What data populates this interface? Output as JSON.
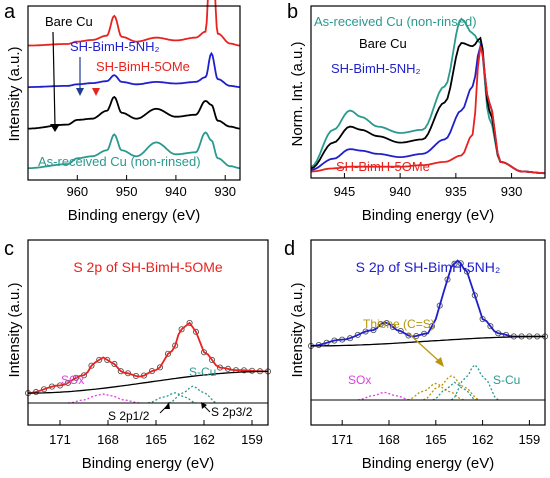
{
  "figure": {
    "panel_letters": [
      "a",
      "b",
      "c",
      "d"
    ]
  },
  "chart_data": [
    {
      "panel": "a",
      "type": "line",
      "xlabel": "Binding energy (eV)",
      "ylabel": "Intensity (a.u.)",
      "xlim": [
        970,
        927
      ],
      "xticks": [
        960,
        950,
        940,
        930
      ],
      "x_reversed": true,
      "grid": false,
      "legend": [
        {
          "label": "Bare Cu",
          "color": "#000000"
        },
        {
          "label": "SH-BimH-5NH₂",
          "color": "#1f1fcc"
        },
        {
          "label": "SH-BimH-5OMe",
          "color": "#e8231f"
        },
        {
          "label": "As-received Cu (non-rinsed)",
          "color": "#2a9a8f"
        }
      ],
      "series": [
        {
          "name": "SH-BimH-5OMe",
          "color": "#e8231f",
          "offset": 3.0,
          "x": [
            970,
            962,
            960,
            957,
            954,
            952.5,
            951,
            948,
            944,
            940,
            936,
            934,
            932.8,
            931.5,
            929,
            927
          ],
          "y": [
            0.2,
            0.24,
            0.3,
            0.34,
            0.45,
            0.95,
            0.42,
            0.3,
            0.4,
            0.33,
            0.4,
            0.55,
            3.0,
            0.5,
            0.25,
            0.2
          ]
        },
        {
          "name": "SH-BimH-5NH₂",
          "color": "#1f1fcc",
          "offset": 2.0,
          "x": [
            970,
            962,
            960,
            957,
            954,
            952.5,
            951,
            948,
            944,
            940,
            936,
            934,
            932.8,
            931.5,
            929,
            927
          ],
          "y": [
            0.15,
            0.18,
            0.22,
            0.25,
            0.3,
            0.45,
            0.28,
            0.22,
            0.28,
            0.24,
            0.28,
            0.4,
            1.0,
            0.35,
            0.18,
            0.15
          ]
        },
        {
          "name": "Bare Cu",
          "color": "#000000",
          "offset": 1.0,
          "x": [
            970,
            962,
            960,
            957,
            954,
            952.5,
            951,
            948,
            944,
            940,
            936,
            934,
            932.8,
            931.5,
            929,
            927
          ],
          "y": [
            0.1,
            0.2,
            0.32,
            0.35,
            0.55,
            0.9,
            0.5,
            0.35,
            0.6,
            0.4,
            0.45,
            0.8,
            0.7,
            0.3,
            0.15,
            0.1
          ]
        },
        {
          "name": "As-received Cu (non-rinsed)",
          "color": "#2a9a8f",
          "offset": 0.0,
          "x": [
            970,
            962,
            960,
            957,
            954,
            952.5,
            951,
            948,
            944,
            940,
            936,
            934,
            932.8,
            931.5,
            929,
            927
          ],
          "y": [
            0.1,
            0.2,
            0.35,
            0.4,
            0.55,
            0.95,
            0.55,
            0.4,
            0.75,
            0.45,
            0.5,
            1.0,
            0.8,
            0.35,
            0.15,
            0.1
          ]
        }
      ]
    },
    {
      "panel": "b",
      "type": "line",
      "xlabel": "Binding energy (eV)",
      "ylabel": "Norm. Int. (a.u.)",
      "xlim": [
        948,
        927
      ],
      "xticks": [
        945,
        940,
        935,
        930
      ],
      "x_reversed": true,
      "grid": false,
      "legend": [
        {
          "label": "As-received Cu (non-rinsed)",
          "color": "#2a9a8f"
        },
        {
          "label": "Bare Cu",
          "color": "#000000"
        },
        {
          "label": "SH-BimH-5NH₂",
          "color": "#1f1fcc"
        },
        {
          "label": "SH-BimH-5OMe",
          "color": "#e8231f"
        }
      ],
      "series": [
        {
          "name": "As-received Cu (non-rinsed)",
          "color": "#2a9a8f",
          "x": [
            948,
            946,
            944.5,
            943.5,
            942,
            940,
            938,
            936,
            934.5,
            933.5,
            932.8,
            932,
            931,
            929,
            927
          ],
          "y": [
            0.05,
            0.28,
            0.4,
            0.36,
            0.3,
            0.26,
            0.28,
            0.55,
            0.97,
            0.88,
            0.82,
            0.35,
            0.08,
            0.02,
            0.01
          ]
        },
        {
          "name": "Bare Cu",
          "color": "#000000",
          "x": [
            948,
            946,
            944.5,
            943.5,
            942,
            940,
            938,
            936,
            934.5,
            933.5,
            932.8,
            932,
            931,
            929,
            927
          ],
          "y": [
            0.04,
            0.2,
            0.3,
            0.28,
            0.24,
            0.2,
            0.22,
            0.45,
            0.82,
            0.8,
            0.85,
            0.4,
            0.08,
            0.02,
            0.01
          ]
        },
        {
          "name": "SH-BimH-5NH₂",
          "color": "#1f1fcc",
          "x": [
            948,
            946,
            944.5,
            943.5,
            942,
            940,
            938,
            936,
            934.5,
            933.5,
            932.8,
            932,
            931,
            929,
            927
          ],
          "y": [
            0.03,
            0.1,
            0.16,
            0.15,
            0.13,
            0.11,
            0.13,
            0.22,
            0.4,
            0.55,
            0.8,
            0.45,
            0.08,
            0.02,
            0.01
          ]
        },
        {
          "name": "SH-BimH-5OMe",
          "color": "#e8231f",
          "x": [
            948,
            946,
            944.5,
            943.5,
            942,
            940,
            938,
            936,
            934.5,
            933.5,
            932.8,
            932,
            931,
            929,
            927
          ],
          "y": [
            0.02,
            0.04,
            0.05,
            0.05,
            0.05,
            0.05,
            0.06,
            0.08,
            0.12,
            0.25,
            0.8,
            0.45,
            0.08,
            0.02,
            0.01
          ]
        }
      ]
    },
    {
      "panel": "c",
      "type": "line",
      "title": "S 2p of SH-BimH-5OMe",
      "xlabel": "Binding energy (eV)",
      "ylabel": "Intensity (a.u.)",
      "xlim": [
        173,
        158
      ],
      "xticks": [
        171,
        168,
        165,
        162,
        159
      ],
      "x_reversed": true,
      "grid": false,
      "annotations": [
        "SOx",
        "S-Cu",
        "S 2p1/2",
        "S 2p3/2"
      ],
      "series": [
        {
          "name": "data",
          "color": "#555555",
          "style": "open-circles",
          "x": [
            173,
            171,
            169.5,
            168.8,
            168.3,
            167.8,
            167,
            166,
            165,
            164,
            163.4,
            162.9,
            162.5,
            162,
            161,
            160,
            158
          ],
          "y": [
            0.1,
            0.16,
            0.24,
            0.34,
            0.38,
            0.34,
            0.26,
            0.23,
            0.28,
            0.43,
            0.6,
            0.65,
            0.58,
            0.42,
            0.3,
            0.28,
            0.27
          ]
        },
        {
          "name": "fit",
          "color": "#e8231f",
          "x": [
            173,
            171,
            169.5,
            168.8,
            168.3,
            167.8,
            167,
            166,
            165,
            164,
            163.4,
            162.9,
            162.5,
            162,
            161,
            160,
            158
          ],
          "y": [
            0.1,
            0.16,
            0.24,
            0.34,
            0.38,
            0.34,
            0.26,
            0.23,
            0.28,
            0.43,
            0.6,
            0.65,
            0.58,
            0.42,
            0.3,
            0.28,
            0.27
          ]
        },
        {
          "name": "background",
          "color": "#000000",
          "x": [
            173,
            158
          ],
          "y": [
            0.1,
            0.27
          ]
        },
        {
          "name": "SOx component",
          "color": "#e040e0",
          "style": "dotted",
          "x": [
            170.5,
            169.5,
            168.8,
            168.3,
            167.8,
            167,
            166
          ],
          "y": [
            0.0,
            0.05,
            0.12,
            0.15,
            0.12,
            0.05,
            0.0
          ]
        },
        {
          "name": "S 2p1/2",
          "color": "#2a9a8f",
          "style": "dotted",
          "x": [
            165.5,
            164.5,
            163.8,
            163.2,
            162.5
          ],
          "y": [
            0.0,
            0.1,
            0.17,
            0.1,
            0.0
          ]
        },
        {
          "name": "S 2p3/2",
          "color": "#2a9a8f",
          "style": "dotted",
          "x": [
            164.2,
            163.3,
            162.7,
            162.0,
            161.2
          ],
          "y": [
            0.0,
            0.17,
            0.28,
            0.17,
            0.0
          ]
        }
      ]
    },
    {
      "panel": "d",
      "type": "line",
      "title": "S 2p of SH-BimH-5NH₂",
      "xlabel": "Binding energy (eV)",
      "ylabel": "Intensity (a.u.)",
      "xlim": [
        173,
        158
      ],
      "xticks": [
        171,
        168,
        165,
        162,
        159
      ],
      "x_reversed": true,
      "grid": false,
      "annotations": [
        "Thione (C=S)",
        "SOx",
        "S-Cu"
      ],
      "series": [
        {
          "name": "data",
          "color": "#555555",
          "style": "open-circles",
          "x": [
            173,
            171,
            169,
            168.3,
            168,
            167.5,
            166.5,
            165.5,
            165,
            164.5,
            164,
            163.6,
            163,
            162.5,
            162,
            161,
            160,
            158
          ],
          "y": [
            0.38,
            0.42,
            0.48,
            0.53,
            0.52,
            0.48,
            0.44,
            0.46,
            0.55,
            0.72,
            0.88,
            0.92,
            0.85,
            0.7,
            0.55,
            0.46,
            0.44,
            0.44
          ]
        },
        {
          "name": "fit",
          "color": "#1f1fcc",
          "x": [
            173,
            171,
            169,
            168.3,
            168,
            167.5,
            166.5,
            165.5,
            165,
            164.5,
            164,
            163.6,
            163,
            162.5,
            162,
            161,
            160,
            158
          ],
          "y": [
            0.38,
            0.42,
            0.48,
            0.53,
            0.52,
            0.48,
            0.44,
            0.46,
            0.55,
            0.72,
            0.88,
            0.92,
            0.85,
            0.7,
            0.55,
            0.46,
            0.44,
            0.44
          ]
        },
        {
          "name": "background",
          "color": "#000000",
          "x": [
            173,
            158
          ],
          "y": [
            0.38,
            0.44
          ]
        },
        {
          "name": "SOx component",
          "color": "#e040e0",
          "style": "dotted",
          "x": [
            170,
            169,
            168.3,
            167.6,
            166.6
          ],
          "y": [
            0.0,
            0.04,
            0.07,
            0.04,
            0.0
          ]
        },
        {
          "name": "Thione 1",
          "color": "#b8960a",
          "style": "dotted",
          "x": [
            166.8,
            165.8,
            165.0,
            164.2,
            163.2
          ],
          "y": [
            0.0,
            0.08,
            0.15,
            0.08,
            0.0
          ]
        },
        {
          "name": "Thione 2",
          "color": "#b8960a",
          "style": "dotted",
          "x": [
            165.8,
            164.8,
            164.0,
            163.2,
            162.2
          ],
          "y": [
            0.0,
            0.12,
            0.22,
            0.12,
            0.0
          ]
        },
        {
          "name": "S-Cu 1",
          "color": "#2a9a8f",
          "style": "dotted",
          "x": [
            165.2,
            164.3,
            163.8,
            163.2,
            162.4
          ],
          "y": [
            0.0,
            0.1,
            0.16,
            0.1,
            0.0
          ]
        },
        {
          "name": "S-Cu 2",
          "color": "#2a9a8f",
          "style": "dotted",
          "x": [
            164.0,
            163.1,
            162.5,
            161.9,
            161.0
          ],
          "y": [
            0.0,
            0.2,
            0.32,
            0.2,
            0.0
          ]
        }
      ]
    }
  ]
}
